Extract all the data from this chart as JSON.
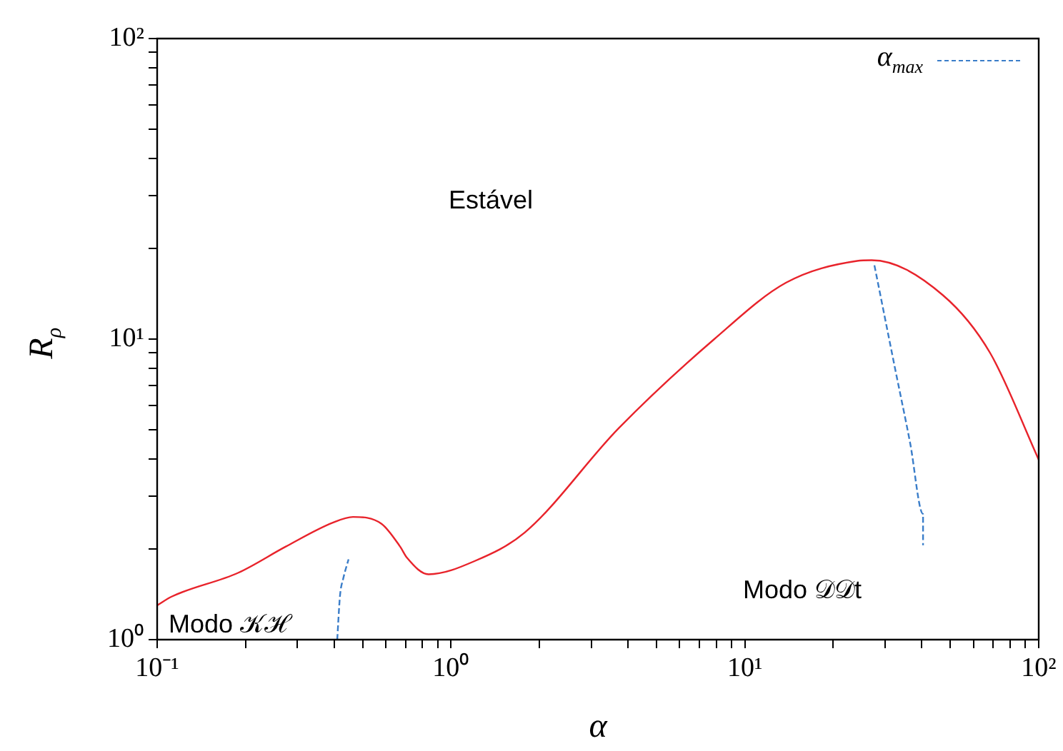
{
  "chart_data": {
    "type": "line",
    "xlabel": "α",
    "ylabel": "R$_{ρ}$",
    "log": "xy",
    "grid": false,
    "legend": "top right",
    "marker": "none",
    "xlim": [
      0.1,
      100
    ],
    "ylim": [
      1,
      100
    ],
    "xticks": [
      {
        "value": 0.1,
        "label": "10⁻¹"
      },
      {
        "value": 0.2,
        "label": null
      },
      {
        "value": 0.3,
        "label": null
      },
      {
        "value": 0.4,
        "label": null
      },
      {
        "value": 0.5,
        "label": null
      },
      {
        "value": 0.6,
        "label": null
      },
      {
        "value": 0.7,
        "label": null
      },
      {
        "value": 0.8,
        "label": null
      },
      {
        "value": 0.9,
        "label": null
      },
      {
        "value": 1,
        "label": "10⁰"
      },
      {
        "value": 2,
        "label": null
      },
      {
        "value": 3,
        "label": null
      },
      {
        "value": 4,
        "label": null
      },
      {
        "value": 5,
        "label": null
      },
      {
        "value": 6,
        "label": null
      },
      {
        "value": 7,
        "label": null
      },
      {
        "value": 8,
        "label": null
      },
      {
        "value": 9,
        "label": null
      },
      {
        "value": 10,
        "label": "10¹"
      },
      {
        "value": 20,
        "label": null
      },
      {
        "value": 30,
        "label": null
      },
      {
        "value": 40,
        "label": null
      },
      {
        "value": 50,
        "label": null
      },
      {
        "value": 60,
        "label": null
      },
      {
        "value": 70,
        "label": null
      },
      {
        "value": 80,
        "label": null
      },
      {
        "value": 90,
        "label": null
      },
      {
        "value": 100,
        "label": "10²"
      }
    ],
    "yticks": [
      {
        "value": 1,
        "label": "10⁰"
      },
      {
        "value": 2,
        "label": null
      },
      {
        "value": 3,
        "label": null
      },
      {
        "value": 4,
        "label": null
      },
      {
        "value": 5,
        "label": null
      },
      {
        "value": 6,
        "label": null
      },
      {
        "value": 7,
        "label": null
      },
      {
        "value": 8,
        "label": null
      },
      {
        "value": 9,
        "label": null
      },
      {
        "value": 10,
        "label": "10¹"
      },
      {
        "value": 20,
        "label": null
      },
      {
        "value": 30,
        "label": null
      },
      {
        "value": 40,
        "label": null
      },
      {
        "value": 50,
        "label": null
      },
      {
        "value": 60,
        "label": null
      },
      {
        "value": 70,
        "label": null
      },
      {
        "value": 80,
        "label": null
      },
      {
        "value": 90,
        "label": null
      },
      {
        "value": 100,
        "label": "10²"
      }
    ],
    "series": [
      {
        "color": "#e8232b",
        "line_style": "solid",
        "x": [
          0.1,
          0.112,
          0.189,
          0.274,
          0.396,
          0.464,
          0.58,
          0.671,
          0.709,
          0.839,
          1.21,
          1.78,
          3.72,
          7.87,
          13.8,
          24.1,
          27,
          47.2,
          68.3,
          100
        ],
        "values": [
          1.3,
          1.39,
          1.67,
          2.04,
          2.45,
          2.56,
          2.43,
          2.04,
          1.87,
          1.65,
          1.83,
          2.27,
          5.05,
          10,
          15.4,
          18.2,
          18.3,
          14,
          9,
          3.97
        ]
      },
      {
        "name": "α$_{max}$",
        "color": "#3a7dc9",
        "line_style": "dashed",
        "x": [
          0.41,
          0.419,
          0.43,
          0.448
        ],
        "values": [
          1,
          1.4,
          1.6,
          1.85
        ]
      },
      {
        "color": "#3a7dc9",
        "line_style": "dashed",
        "x": [
          27.6,
          32.6,
          36.5,
          40.4,
          40.4
        ],
        "values": [
          17.6,
          7.8,
          4.52,
          2.62,
          2.06
        ]
      }
    ],
    "annotations": [
      "Estável",
      "Modo 𝒦ℋ",
      "Modo 𝒟𝒟t"
    ]
  }
}
